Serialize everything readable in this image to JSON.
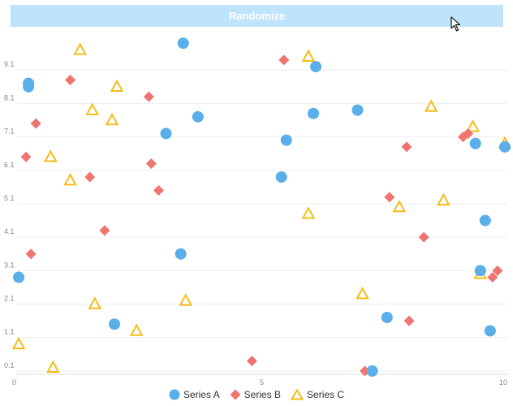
{
  "toolbar": {
    "randomize_label": "Randomize"
  },
  "cursor_icon": "mouse-pointer-icon",
  "colors": {
    "series_a": "#5aaee9",
    "series_b": "#ef7470",
    "series_c": "#f6bd16",
    "button_bg": "#bfe3fb",
    "grid": "#eeeeee",
    "axis": "#d9d9d9",
    "tick_text": "#888888"
  },
  "chart_data": {
    "type": "scatter",
    "xlabel": "",
    "ylabel": "",
    "xlim": [
      0,
      10
    ],
    "ylim": [
      0,
      10.1
    ],
    "x_ticks": [
      0,
      5,
      10
    ],
    "x_tick_labels": [
      "0",
      "5",
      "10"
    ],
    "y_ticks": [
      0.1,
      1.1,
      2.1,
      3.1,
      4.1,
      5.1,
      6.1,
      7.1,
      8.1,
      9.1
    ],
    "y_tick_labels": [
      "0.1",
      "1.1",
      "2.1",
      "3.1",
      "4.1",
      "5.1",
      "6.1",
      "7.1",
      "8.1",
      "9.1"
    ],
    "grid": true,
    "legend_position": "bottom-center",
    "series": [
      {
        "name": "Series A",
        "marker": "circle",
        "points": [
          [
            0.05,
            2.9
          ],
          [
            0.25,
            8.7
          ],
          [
            0.25,
            8.6
          ],
          [
            2.0,
            1.5
          ],
          [
            3.05,
            7.2
          ],
          [
            3.35,
            3.6
          ],
          [
            3.4,
            9.9
          ],
          [
            3.7,
            7.7
          ],
          [
            5.4,
            5.9
          ],
          [
            5.5,
            7.0
          ],
          [
            6.05,
            7.8
          ],
          [
            6.1,
            9.2
          ],
          [
            6.95,
            7.9
          ],
          [
            7.25,
            0.1
          ],
          [
            7.55,
            1.7
          ],
          [
            9.35,
            6.9
          ],
          [
            9.45,
            3.1
          ],
          [
            9.55,
            4.6
          ],
          [
            9.65,
            1.3
          ],
          [
            9.95,
            6.8
          ]
        ]
      },
      {
        "name": "Series B",
        "marker": "diamond",
        "points": [
          [
            0.2,
            6.5
          ],
          [
            0.3,
            3.6
          ],
          [
            0.4,
            7.5
          ],
          [
            1.1,
            8.8
          ],
          [
            1.5,
            5.9
          ],
          [
            1.8,
            4.3
          ],
          [
            2.7,
            8.3
          ],
          [
            2.75,
            6.3
          ],
          [
            2.9,
            5.5
          ],
          [
            4.8,
            0.4
          ],
          [
            5.45,
            9.4
          ],
          [
            7.1,
            0.1
          ],
          [
            7.6,
            5.3
          ],
          [
            7.95,
            6.8
          ],
          [
            8.0,
            1.6
          ],
          [
            8.3,
            4.1
          ],
          [
            9.1,
            7.1
          ],
          [
            9.2,
            7.2
          ],
          [
            9.7,
            2.9
          ],
          [
            9.8,
            3.1
          ]
        ]
      },
      {
        "name": "Series C",
        "marker": "triangle",
        "points": [
          [
            0.05,
            0.9
          ],
          [
            0.7,
            6.5
          ],
          [
            0.75,
            0.2
          ],
          [
            1.1,
            5.8
          ],
          [
            1.3,
            9.7
          ],
          [
            1.55,
            7.9
          ],
          [
            1.6,
            2.1
          ],
          [
            1.95,
            7.6
          ],
          [
            2.05,
            8.6
          ],
          [
            2.45,
            1.3
          ],
          [
            3.45,
            2.2
          ],
          [
            5.95,
            9.5
          ],
          [
            5.95,
            4.8
          ],
          [
            7.05,
            2.4
          ],
          [
            7.8,
            5.0
          ],
          [
            8.45,
            8.0
          ],
          [
            8.7,
            5.2
          ],
          [
            9.3,
            7.4
          ],
          [
            9.45,
            3.0
          ],
          [
            9.95,
            6.9
          ]
        ]
      }
    ]
  }
}
